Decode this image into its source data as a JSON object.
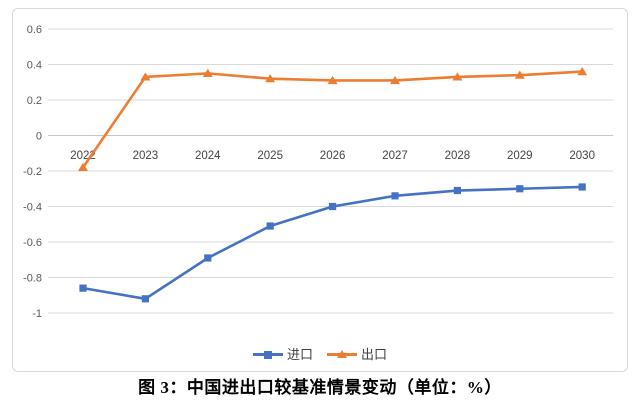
{
  "chart_data": {
    "type": "line",
    "title": "",
    "xlabel": "",
    "ylabel": "",
    "categories": [
      "2022",
      "2023",
      "2024",
      "2025",
      "2026",
      "2027",
      "2028",
      "2029",
      "2030"
    ],
    "series": [
      {
        "name": "进口",
        "color": "#4472C4",
        "marker": "square",
        "values": [
          -0.86,
          -0.92,
          -0.69,
          -0.51,
          -0.4,
          -0.34,
          -0.31,
          -0.3,
          -0.29
        ]
      },
      {
        "name": "出口",
        "color": "#ED7D31",
        "marker": "triangle",
        "values": [
          -0.18,
          0.33,
          0.35,
          0.32,
          0.31,
          0.31,
          0.33,
          0.34,
          0.36
        ]
      }
    ],
    "ylim": [
      -1,
      0.6
    ],
    "y_ticks": [
      0.6,
      0.4,
      0.2,
      0,
      -0.2,
      -0.4,
      -0.6,
      -0.8,
      -1
    ],
    "y_tick_labels": [
      "0.6",
      "0.4",
      "0.2",
      "0",
      "-0.2",
      "-0.4",
      "-0.6",
      "-0.8",
      "-1"
    ],
    "grid": true,
    "legend_position": "bottom-center",
    "gridline_color": "#D9D9D9",
    "zero_line_color": "#C6C6C6",
    "tick_label_color": "#595959",
    "category_label_color": "#444444",
    "frame_color": "#D9D9D9"
  },
  "caption": "图 3：中国进出口较基准情景变动（单位：%）"
}
